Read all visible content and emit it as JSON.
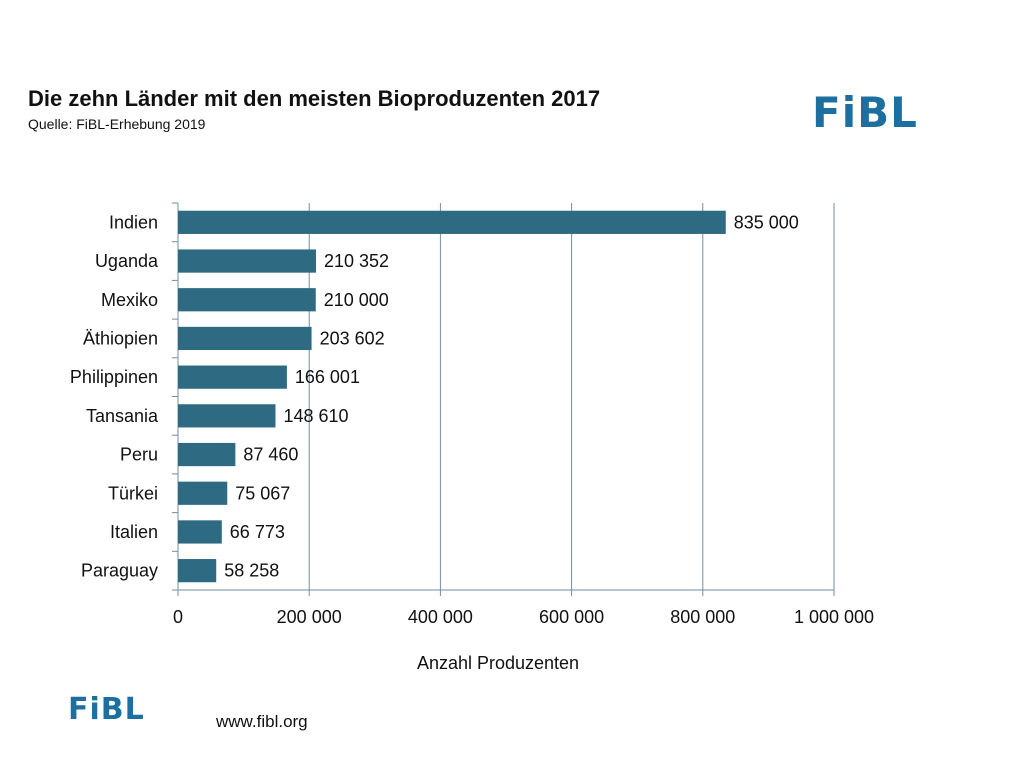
{
  "header": {
    "title": "Die zehn Länder mit den meisten Bioproduzenten 2017",
    "subtitle": "Quelle: FiBL-Erhebung 2019",
    "logo_text": "FiBL"
  },
  "footer": {
    "logo_text": "FiBL",
    "website": "www.fibl.org"
  },
  "colors": {
    "bar": "#2e6a82",
    "grid": "#6f8fa3",
    "brand": "#1d6fa0"
  },
  "chart_data": {
    "type": "bar",
    "orientation": "horizontal",
    "title": "Die zehn Länder mit den meisten Bioproduzenten 2017",
    "xlabel": "Anzahl Produzenten",
    "ylabel": "",
    "xlim": [
      0,
      1000000
    ],
    "grid": true,
    "legend": "none",
    "x_ticks": [
      0,
      200000,
      400000,
      600000,
      800000,
      1000000
    ],
    "x_tick_labels": [
      "0",
      "200 000",
      "400 000",
      "600 000",
      "800 000",
      "1 000 000"
    ],
    "categories": [
      "Indien",
      "Uganda",
      "Mexiko",
      "Äthiopien",
      "Philippinen",
      "Tansania",
      "Peru",
      "Türkei",
      "Italien",
      "Paraguay"
    ],
    "values": [
      835000,
      210352,
      210000,
      203602,
      166001,
      148610,
      87460,
      75067,
      66773,
      58258
    ],
    "value_labels": [
      "835 000",
      "210 352",
      "210 000",
      "203 602",
      "166 001",
      "148 610",
      "87 460",
      "75 067",
      "66 773",
      "58 258"
    ]
  }
}
